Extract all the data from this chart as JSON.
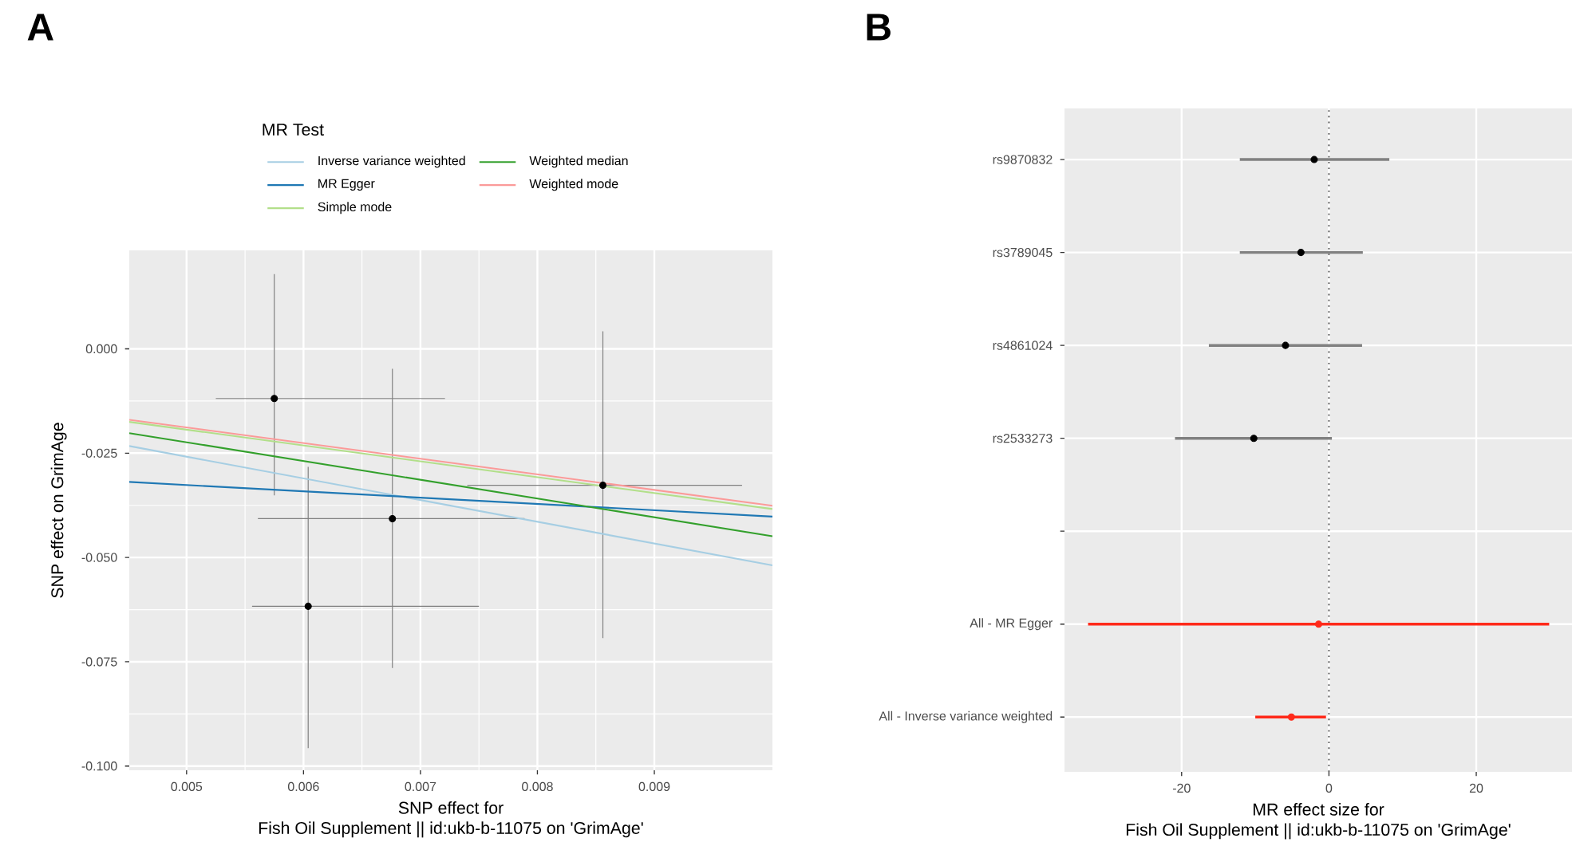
{
  "chart_data": [
    {
      "type": "scatter",
      "title": "A",
      "xlabel": "SNP effect for\nFish Oil Supplement || id:ukb-b-11075 on 'GrimAge'",
      "ylabel": "SNP effect on GrimAge",
      "legend_title": "MR Test",
      "legend": "top",
      "grid": true,
      "xlim": [
        0.00451,
        0.01001
      ],
      "ylim": [
        -0.101,
        0.0236
      ],
      "xticks": [
        0.005,
        0.006,
        0.007,
        0.008,
        0.009
      ],
      "yticks": [
        {
          "value": -0.1,
          "label": "-0.100"
        },
        -0.075,
        {
          "value": -0.05,
          "label": "-0.050"
        },
        -0.025,
        {
          "value": 0,
          "label": "0.000"
        }
      ],
      "series": [
        {
          "color": "#000000",
          "marker": "circle",
          "x": [
            0.00575,
            0.00604,
            0.00676,
            0.00856
          ],
          "values": [
            -0.0119,
            -0.0617,
            -0.0407,
            -0.0327
          ],
          "errors": [
            [
              -0.0351,
              0.0179
            ],
            [
              -0.0957,
              -0.0283
            ],
            [
              -0.0765,
              -0.0048
            ],
            [
              -0.0693,
              0.0042
            ]
          ],
          "xerrors": [
            [
              0.00525,
              0.00721
            ],
            [
              0.00556,
              0.0075
            ],
            [
              0.00561,
              0.00789
            ],
            [
              0.0074,
              0.00975
            ]
          ]
        },
        {
          "name": "Inverse variance weighted",
          "type": "line",
          "color": "#a6cee3",
          "x": [
            0.00451,
            0.01001
          ],
          "values": [
            -0.0233,
            -0.0519
          ]
        },
        {
          "name": "MR Egger",
          "type": "line",
          "color": "#1f78b4",
          "x": [
            0.00451,
            0.01001
          ],
          "values": [
            -0.0319,
            -0.0402
          ]
        },
        {
          "name": "Simple mode",
          "type": "line",
          "color": "#b2df8a",
          "x": [
            0.00451,
            0.01001
          ],
          "values": [
            -0.0175,
            -0.0384
          ]
        },
        {
          "name": "Weighted median",
          "type": "line",
          "color": "#33a02c",
          "x": [
            0.00451,
            0.01001
          ],
          "values": [
            -0.0202,
            -0.0449
          ]
        },
        {
          "name": "Weighted mode",
          "type": "line",
          "color": "#fb9a99",
          "x": [
            0.00451,
            0.01001
          ],
          "values": [
            -0.017,
            -0.0376
          ]
        }
      ]
    },
    {
      "type": "scatter",
      "orientation": "horizontal",
      "title": "B",
      "xlabel": "MR effect size for\nFish Oil Supplement || id:ukb-b-11075 on 'GrimAge'",
      "categories": [
        "rs9870832",
        "rs3789045",
        "rs4861024",
        "rs2533273",
        null,
        "All - MR Egger",
        "All - Inverse variance weighted"
      ],
      "xlim": [
        -35.9,
        33.0
      ],
      "xticks": [
        -20,
        0,
        20
      ],
      "grid": true,
      "marker": "circle",
      "ref_lines": [
        {
          "axis": "x",
          "value": 0,
          "line_style": "dotted",
          "color": "#555555"
        }
      ],
      "series": [
        {
          "color": "#000000",
          "values": [
            -2.0,
            -3.8,
            -5.9,
            -10.2,
            null,
            null,
            null
          ],
          "errors": [
            [
              -12.1,
              8.2
            ],
            [
              -12.1,
              4.6
            ],
            [
              -16.3,
              4.5
            ],
            [
              -20.9,
              0.4
            ],
            null,
            null,
            null
          ]
        },
        {
          "color": "#ff2a1a",
          "values": [
            null,
            null,
            null,
            null,
            null,
            -1.4,
            -5.1
          ],
          "errors": [
            null,
            null,
            null,
            null,
            null,
            [
              -32.7,
              29.9
            ],
            [
              -10.0,
              -0.4
            ]
          ]
        }
      ]
    }
  ]
}
